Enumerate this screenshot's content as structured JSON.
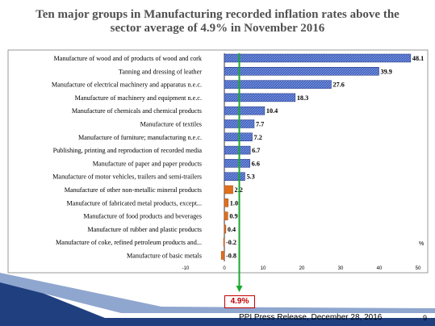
{
  "slide": {
    "title_line1": "Ten major groups in Manufacturing recorded inflation rates above the",
    "title_line2": "sector average of 4.9% in November 2016",
    "footer": "PPI Press Release, December 28, 2016",
    "page_number": "9",
    "average_label": "4.9%"
  },
  "colors": {
    "above_average_bar": "#3f5fbf",
    "below_average_bar": "#e07020",
    "average_arrow": "#1aa82a",
    "average_label_border": "#c00000",
    "bottom_band": "#1f3f7f"
  },
  "chart_data": {
    "type": "bar",
    "orientation": "horizontal",
    "title": "Ten major groups in Manufacturing recorded inflation rates above the sector average of 4.9% in November 2016",
    "unit_label": "%",
    "categories": [
      "Manufacture of wood and of products of wood and cork",
      "Tanning and dressing of leather",
      "Manufacture of electrical machinery and apparatus n.e.c.",
      "Manufacture of machinery and equipment n.e.c.",
      "Manufacture of chemicals and chemical products",
      "Manufacture of textiles",
      "Manufacture of furniture; manufacturing n.e.c.",
      "Publishing, printing and reproduction of recorded media",
      "Manufacture of paper and paper products",
      "Manufacture of motor vehicles, trailers and semi-trailers",
      "Manufacture of other non-metallic mineral products",
      "Manufacture of fabricated metal products, except...",
      "Manufacture of food products and beverages",
      "Manufacture of rubber and plastic products",
      "Manufacture of coke, refined petroleum products and...",
      "Manufacture of basic metals"
    ],
    "values": [
      48.1,
      39.9,
      27.6,
      18.3,
      10.4,
      7.7,
      7.2,
      6.7,
      6.6,
      5.3,
      2.2,
      1.0,
      0.9,
      0.4,
      -0.2,
      -0.8
    ],
    "value_labels": [
      "48.1",
      "39.9",
      "27.6",
      "18.3",
      "10.4",
      "7.7",
      "7.2",
      "6.7",
      "6.6",
      "5.3",
      "2.2",
      "1.0",
      "0.9",
      "0.4",
      "-0.2",
      "-0.8"
    ],
    "xlim": [
      -10,
      50
    ],
    "xticks": [
      -10,
      0,
      10,
      20,
      30,
      40,
      50
    ],
    "reference_value": 4.9,
    "grid": false,
    "legend": "none"
  }
}
